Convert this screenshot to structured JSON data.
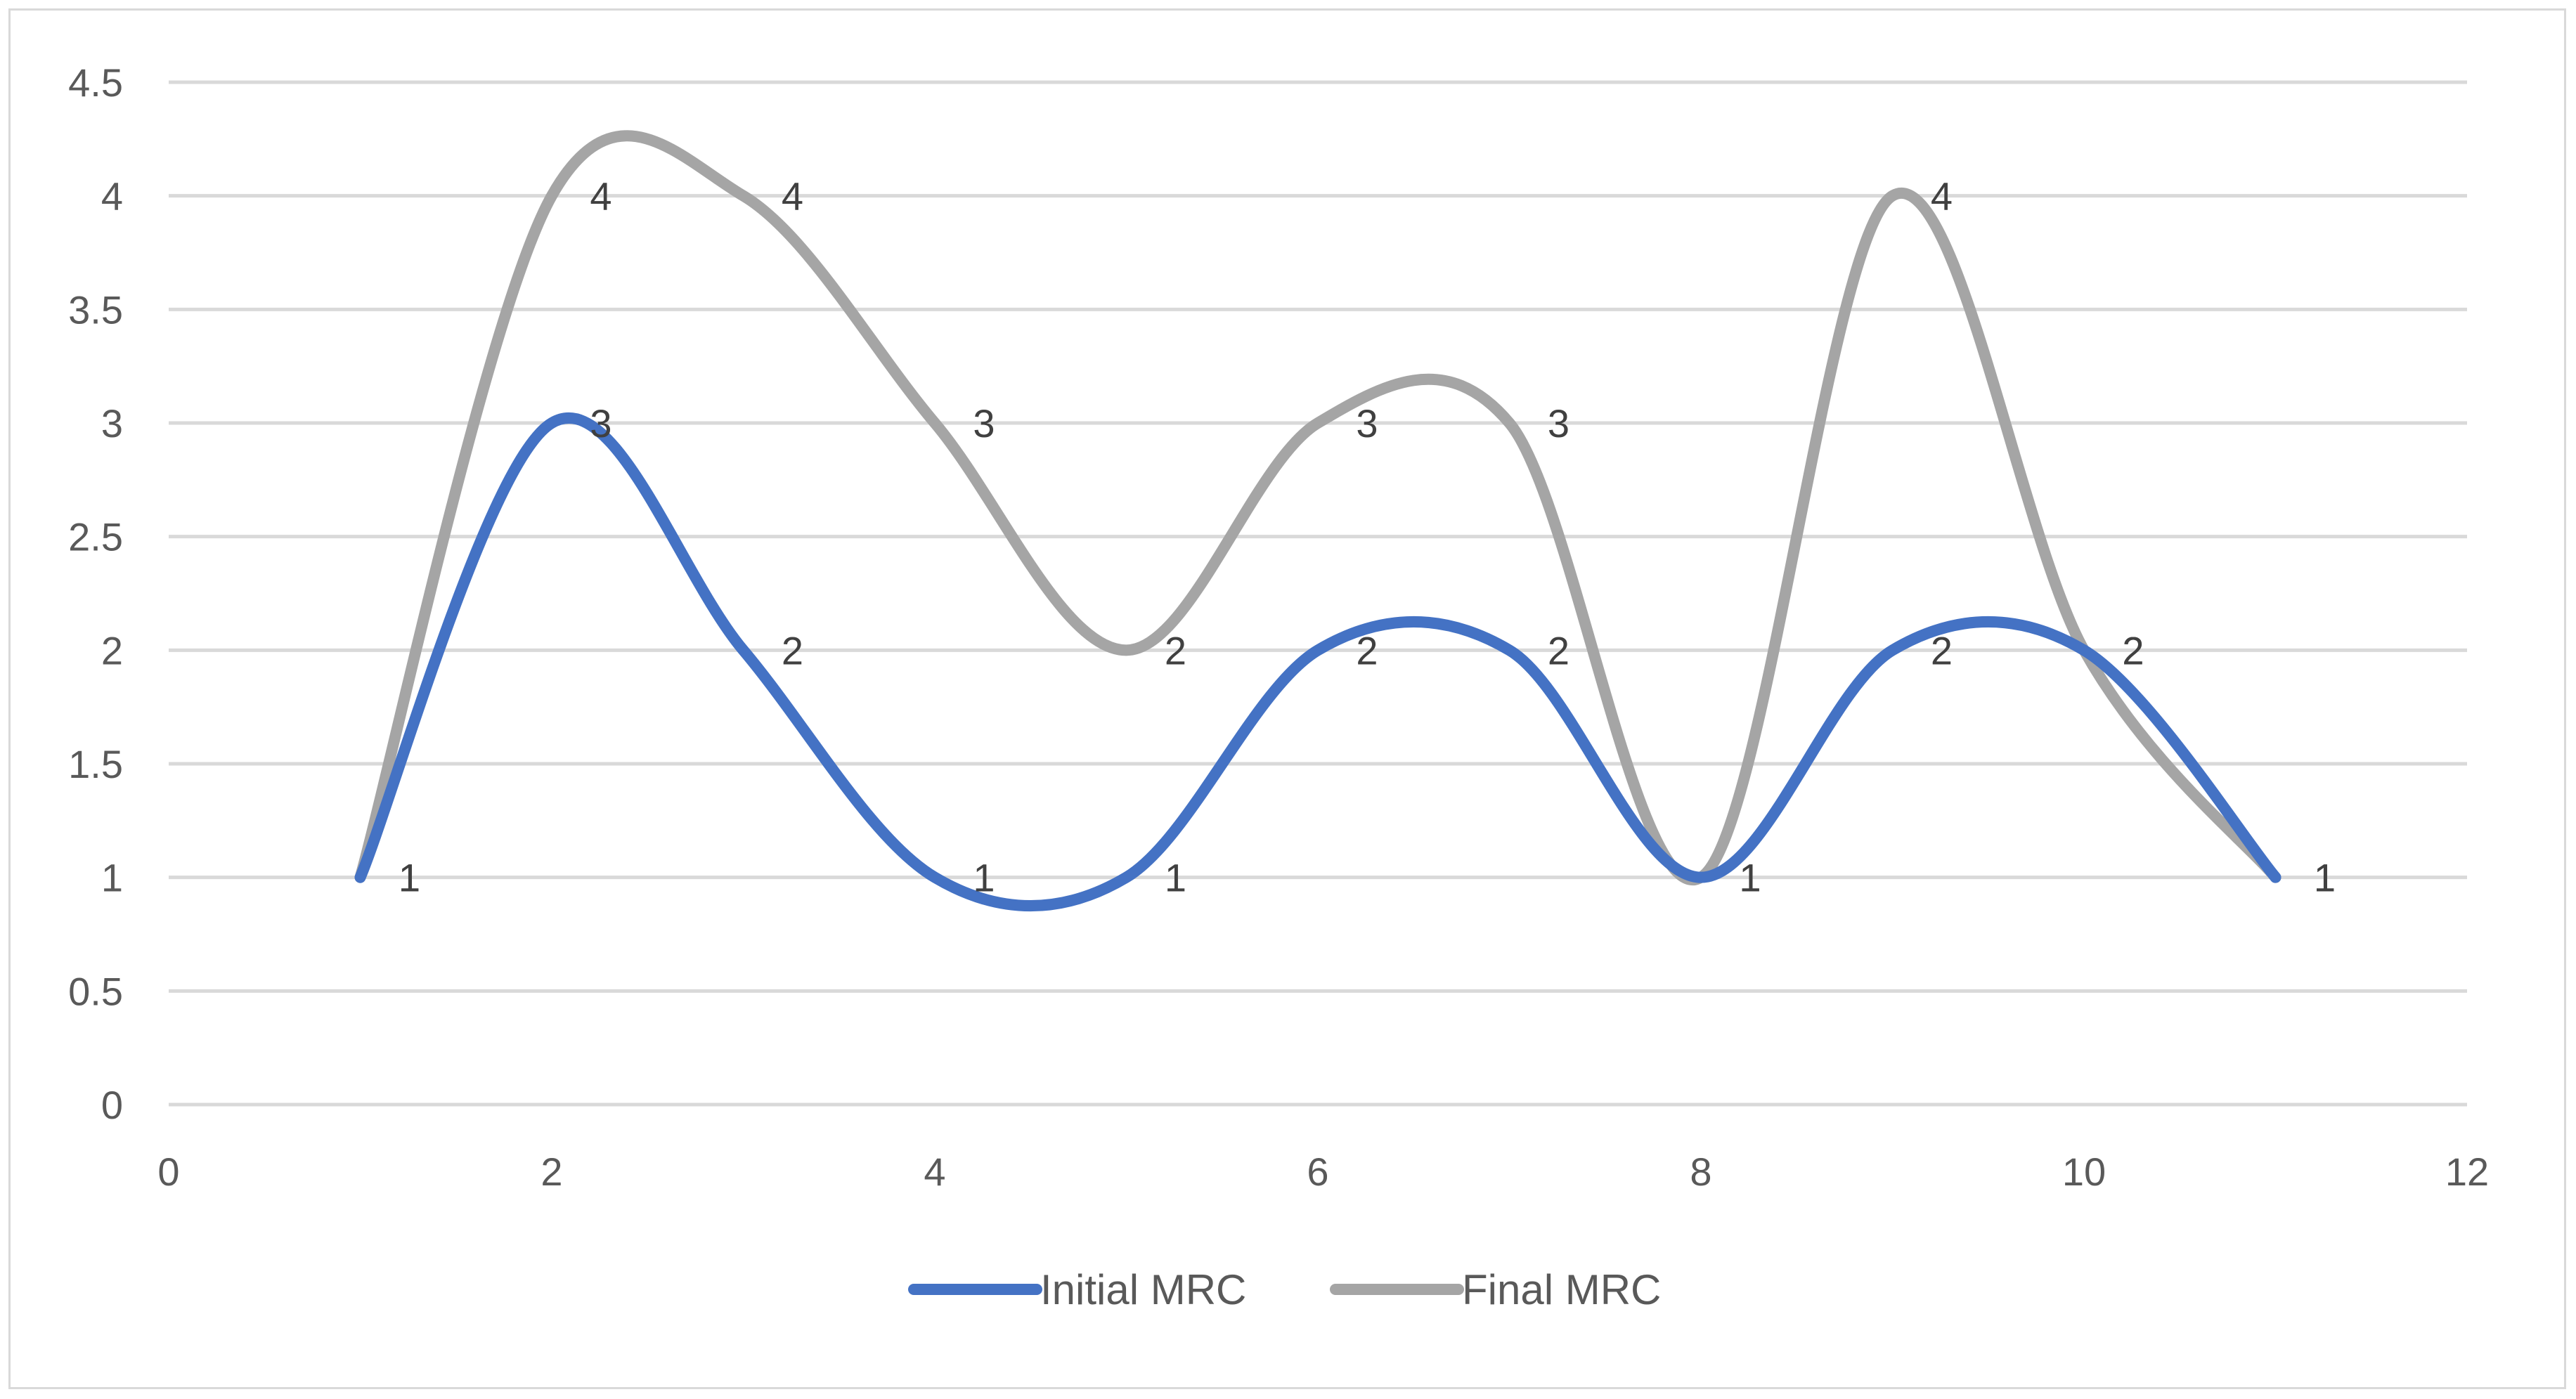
{
  "chart_data": {
    "type": "line",
    "smooth": true,
    "title": "",
    "xlabel": "",
    "ylabel": "",
    "xlim": [
      0,
      12
    ],
    "ylim": [
      0,
      4.5
    ],
    "x_ticks": [
      "0",
      "2",
      "4",
      "6",
      "8",
      "10",
      "12"
    ],
    "y_ticks": [
      "0",
      "0.5",
      "1",
      "1.5",
      "2",
      "2.5",
      "3",
      "3.5",
      "4",
      "4.5"
    ],
    "grid": true,
    "legend_position": "bottom",
    "x": [
      1,
      2,
      3,
      4,
      5,
      6,
      7,
      8,
      9,
      10,
      11
    ],
    "series": [
      {
        "name": "Initial MRC",
        "color": "#4472c4",
        "values": [
          1,
          3,
          2,
          1,
          1,
          2,
          2,
          1,
          2,
          2,
          1
        ]
      },
      {
        "name": "Final MRC",
        "color": "#a5a5a5",
        "values": [
          1,
          4,
          4,
          3,
          2,
          3,
          3,
          1,
          4,
          2,
          1
        ]
      }
    ],
    "data_labels_shown": true
  }
}
